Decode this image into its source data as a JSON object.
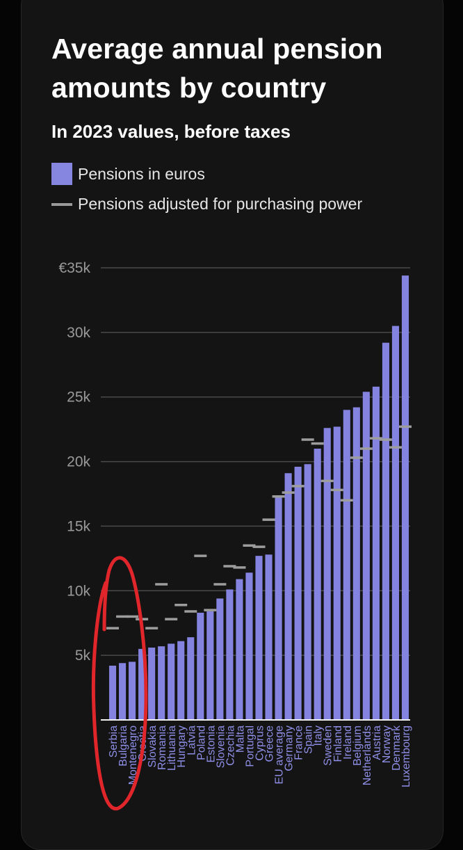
{
  "colors": {
    "bar": "#8484e0",
    "adjusted": "#9d9d9d",
    "grid": "#4a4a4a",
    "annotation": "#e0262b"
  },
  "chart_data": {
    "type": "bar",
    "title": "Average annual pension amounts by country",
    "subtitle": "In 2023 values, before taxes",
    "ylim": [
      0,
      35000
    ],
    "yticks": [
      {
        "value": 5000,
        "label": "5k"
      },
      {
        "value": 10000,
        "label": "10k"
      },
      {
        "value": 15000,
        "label": "15k"
      },
      {
        "value": 20000,
        "label": "20k"
      },
      {
        "value": 25000,
        "label": "25k"
      },
      {
        "value": 30000,
        "label": "30k"
      },
      {
        "value": 35000,
        "label": "€35k"
      }
    ],
    "grid": true,
    "legend_placement": "top-left",
    "categories": [
      "Serbia",
      "Bulgaria",
      "Montenegro",
      "Croatia",
      "Slovakia",
      "Romania",
      "Lithuania",
      "Hungary",
      "Latvia",
      "Poland",
      "Estonia",
      "Slovenia",
      "Czechia",
      "Malta",
      "Portugal",
      "Cyprus",
      "Greece",
      "EU average",
      "Germany",
      "France",
      "Spain",
      "Italy",
      "Sweden",
      "Finland",
      "Ireland",
      "Belgium",
      "Netherlands",
      "Austria",
      "Norway",
      "Denmark",
      "Luxembourg"
    ],
    "series": [
      {
        "name": "Pensions in euros",
        "values": [
          4200,
          4400,
          4500,
          5500,
          5600,
          5700,
          5900,
          6100,
          6400,
          8300,
          8400,
          9400,
          10100,
          10900,
          11400,
          12700,
          12800,
          17300,
          19100,
          19600,
          19800,
          21000,
          22600,
          22700,
          24000,
          24200,
          25400,
          25800,
          29200,
          30500,
          34400
        ]
      },
      {
        "name": "Pensions adjusted for purchasing power",
        "values": [
          7100,
          8000,
          8000,
          7800,
          7100,
          10500,
          7800,
          8900,
          8400,
          12700,
          8500,
          10500,
          11900,
          11800,
          13500,
          13400,
          15500,
          17300,
          17600,
          18100,
          21700,
          21400,
          18500,
          17800,
          17000,
          20300,
          21000,
          21800,
          21700,
          21100,
          22700
        ]
      }
    ]
  },
  "legend": {
    "bars_label": "Pensions in euros",
    "line_label": "Pensions adjusted for purchasing power"
  }
}
